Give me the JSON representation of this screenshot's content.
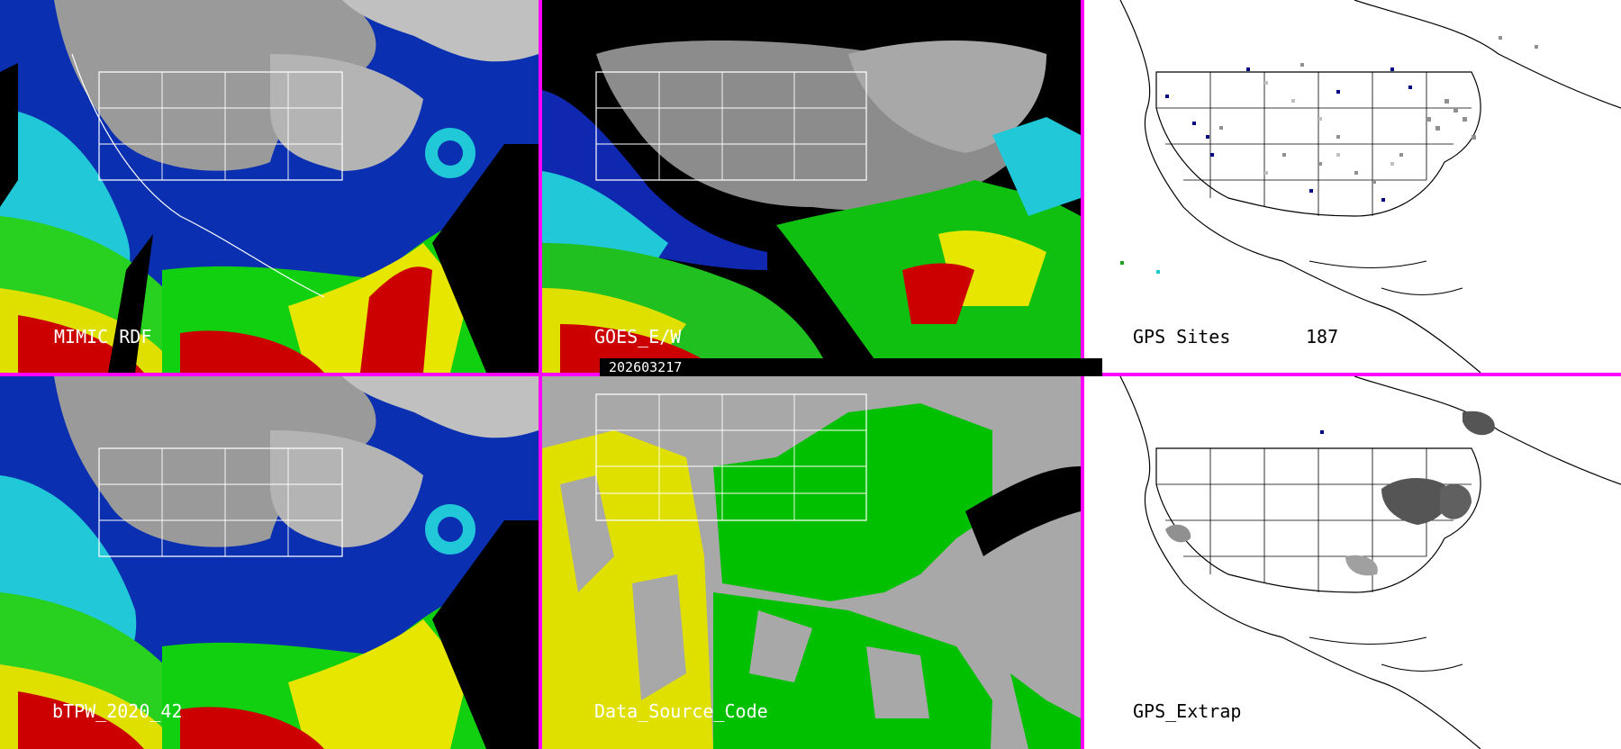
{
  "panels": [
    {
      "label": "MIMIC RDF",
      "colors": {
        "water": "#0000aa",
        "land": "#9a9a9a"
      }
    },
    {
      "label": "GOES_E/W",
      "colors": {
        "bg": "#000000"
      }
    },
    {
      "label": "GPS Sites",
      "count": "187"
    },
    {
      "label": "bTPW_2020_42"
    },
    {
      "label": "Data_Source_Code",
      "colors": {
        "gray": "#a8a8a8",
        "green": "#00c000",
        "yellow": "#e0e000"
      }
    },
    {
      "label": "GPS_Extrap"
    }
  ],
  "date_label": "202603217",
  "colors": {
    "divider": "#ff00ff"
  }
}
